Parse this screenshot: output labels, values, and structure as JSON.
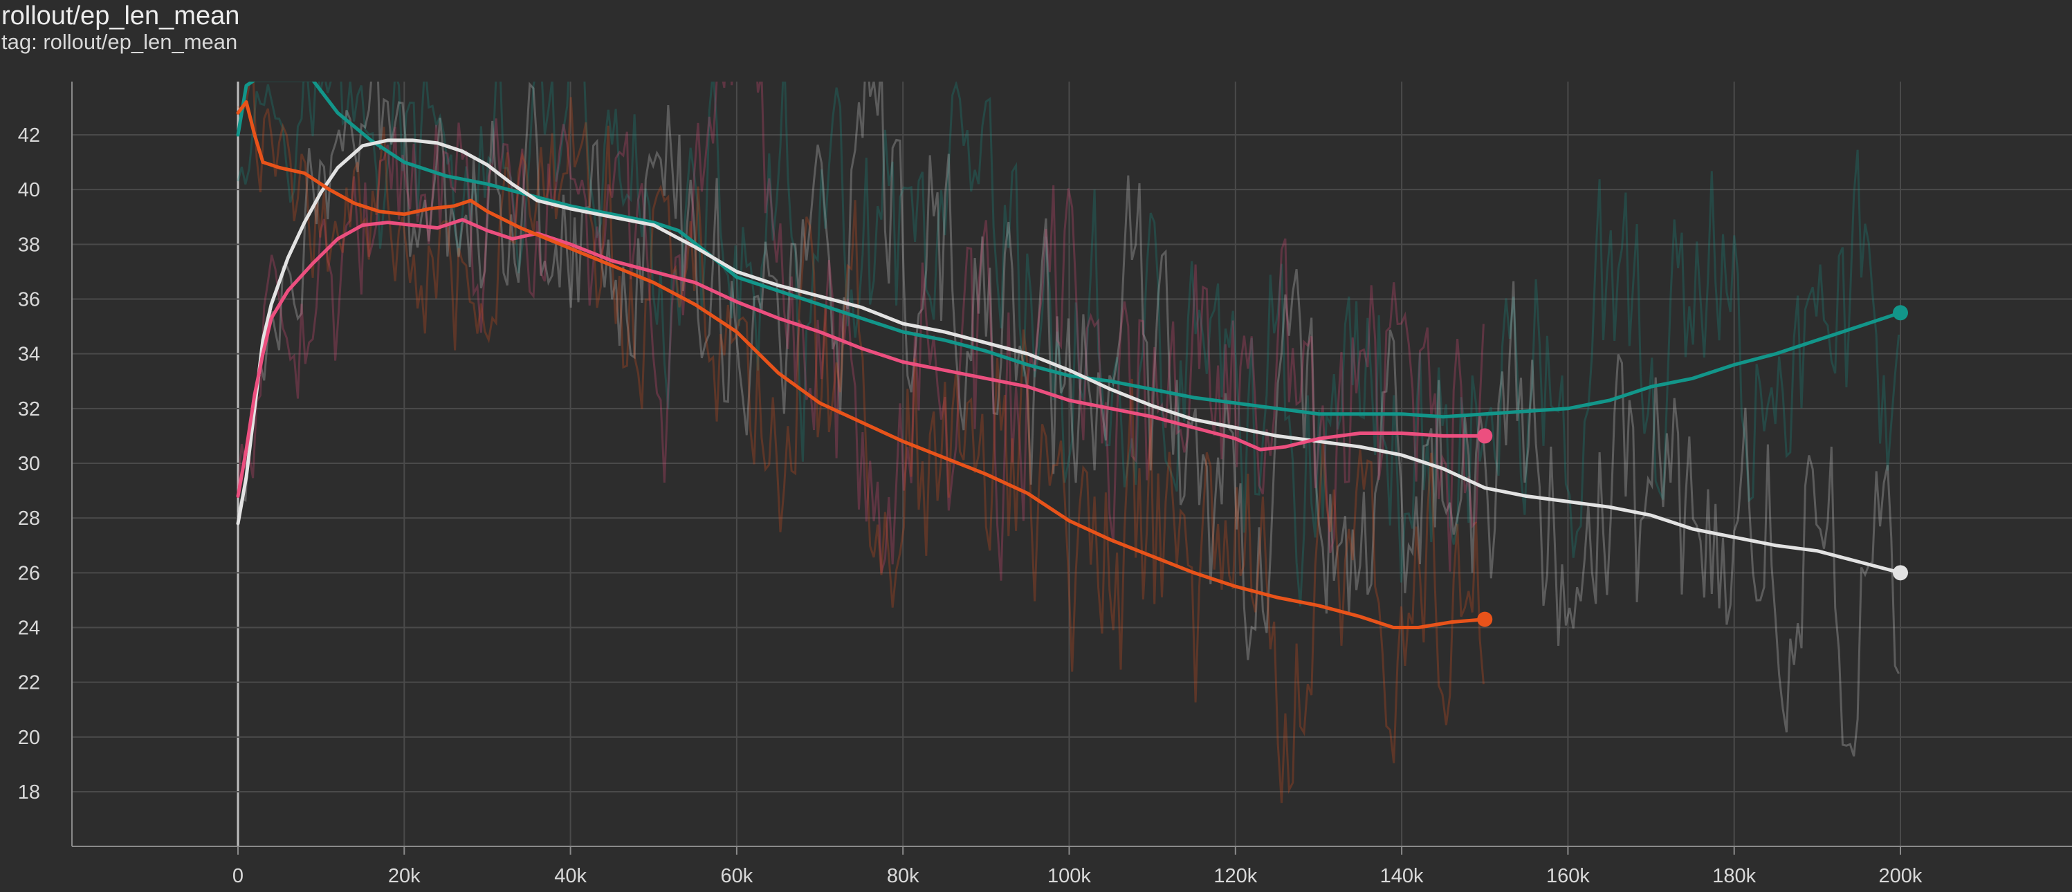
{
  "header": {
    "title": "rollout/ep_len_mean",
    "tag": "tag: rollout/ep_len_mean"
  },
  "chart_data": {
    "type": "line",
    "title": "rollout/ep_len_mean",
    "xlabel": "",
    "ylabel": "",
    "xlim": [
      -20000,
      220000
    ],
    "ylim": [
      16,
      44
    ],
    "x_ticks": [
      0,
      20000,
      40000,
      60000,
      80000,
      100000,
      120000,
      140000,
      160000,
      180000,
      200000
    ],
    "x_tick_labels": [
      "0",
      "20k",
      "40k",
      "60k",
      "80k",
      "100k",
      "120k",
      "140k",
      "160k",
      "180k",
      "200k"
    ],
    "y_ticks": [
      18,
      20,
      22,
      24,
      26,
      28,
      30,
      32,
      34,
      36,
      38,
      40,
      42
    ],
    "y_tick_labels": [
      "18",
      "20",
      "22",
      "24",
      "26",
      "28",
      "30",
      "32",
      "34",
      "36",
      "38",
      "40",
      "42"
    ],
    "grid": true,
    "legend": "none",
    "series": [
      {
        "color": "#12968a",
        "x": [
          0,
          1000,
          2000,
          4000,
          6000,
          9000,
          12000,
          16000,
          20000,
          25000,
          30000,
          35000,
          40000,
          45000,
          50000,
          53000,
          56000,
          60000,
          65000,
          70000,
          75000,
          80000,
          85000,
          90000,
          95000,
          100000,
          105000,
          110000,
          115000,
          120000,
          125000,
          130000,
          135000,
          140000,
          145000,
          150000,
          155000,
          160000,
          165000,
          170000,
          175000,
          180000,
          185000,
          190000,
          195000,
          200000
        ],
        "y": [
          42,
          43.8,
          44,
          44,
          44,
          44,
          42.8,
          41.8,
          41,
          40.5,
          40.2,
          39.8,
          39.4,
          39.1,
          38.8,
          38.5,
          37.8,
          36.8,
          36.3,
          35.8,
          35.3,
          34.8,
          34.5,
          34.1,
          33.6,
          33.2,
          33,
          32.7,
          32.4,
          32.2,
          32,
          31.8,
          31.8,
          31.8,
          31.7,
          31.8,
          31.9,
          32,
          32.3,
          32.8,
          33.1,
          33.6,
          34,
          34.5,
          35,
          35.5
        ]
      },
      {
        "color": "#e3e3e3",
        "x": [
          0,
          1000,
          2000,
          3000,
          4000,
          6000,
          8000,
          10000,
          12000,
          15000,
          18000,
          21000,
          24000,
          27000,
          30000,
          33000,
          36000,
          40000,
          45000,
          50000,
          55000,
          60000,
          65000,
          70000,
          75000,
          80000,
          85000,
          90000,
          95000,
          100000,
          105000,
          110000,
          115000,
          120000,
          125000,
          130000,
          135000,
          140000,
          145000,
          150000,
          155000,
          160000,
          165000,
          170000,
          175000,
          180000,
          185000,
          190000,
          195000,
          200000
        ],
        "y": [
          27.8,
          29.5,
          32,
          34.5,
          35.8,
          37.5,
          38.8,
          39.9,
          40.8,
          41.6,
          41.8,
          41.8,
          41.7,
          41.4,
          40.9,
          40.2,
          39.6,
          39.3,
          39,
          38.7,
          37.9,
          37,
          36.5,
          36.1,
          35.7,
          35.1,
          34.8,
          34.4,
          34,
          33.4,
          32.7,
          32.1,
          31.6,
          31.3,
          31,
          30.8,
          30.6,
          30.3,
          29.8,
          29.1,
          28.8,
          28.6,
          28.4,
          28.1,
          27.6,
          27.3,
          27,
          26.8,
          26.4,
          26
        ]
      },
      {
        "color": "#ec4f7f",
        "x": [
          0,
          1000,
          2000,
          3000,
          4000,
          6000,
          9000,
          12000,
          15000,
          18000,
          21000,
          24000,
          27000,
          30000,
          33000,
          36000,
          40000,
          45000,
          50000,
          55000,
          60000,
          65000,
          70000,
          75000,
          80000,
          85000,
          90000,
          95000,
          100000,
          105000,
          110000,
          115000,
          120000,
          123000,
          126000,
          130000,
          135000,
          140000,
          145000,
          150000
        ],
        "y": [
          28.8,
          30.5,
          32.5,
          34,
          35.3,
          36.3,
          37.3,
          38.2,
          38.7,
          38.8,
          38.7,
          38.6,
          38.9,
          38.5,
          38.2,
          38.4,
          38,
          37.4,
          37,
          36.6,
          35.9,
          35.3,
          34.8,
          34.2,
          33.7,
          33.4,
          33.1,
          32.8,
          32.3,
          32,
          31.7,
          31.3,
          30.9,
          30.5,
          30.6,
          30.9,
          31.1,
          31.1,
          31,
          31
        ]
      },
      {
        "color": "#e8531a",
        "x": [
          0,
          1000,
          2000,
          3000,
          5000,
          8000,
          11000,
          14000,
          17000,
          20000,
          23000,
          26000,
          28000,
          30000,
          34000,
          38000,
          42000,
          46000,
          50000,
          55000,
          60000,
          65000,
          70000,
          75000,
          80000,
          85000,
          90000,
          95000,
          100000,
          105000,
          110000,
          115000,
          120000,
          125000,
          130000,
          135000,
          139000,
          142000,
          146000,
          150000
        ],
        "y": [
          42.8,
          43.2,
          42,
          41,
          40.8,
          40.6,
          40,
          39.5,
          39.2,
          39.1,
          39.3,
          39.4,
          39.6,
          39.2,
          38.6,
          38.1,
          37.6,
          37.1,
          36.6,
          35.8,
          34.8,
          33.3,
          32.2,
          31.5,
          30.8,
          30.2,
          29.6,
          28.9,
          27.9,
          27.2,
          26.6,
          26,
          25.5,
          25.1,
          24.8,
          24.4,
          24,
          24,
          24.2,
          24.3
        ]
      }
    ]
  }
}
